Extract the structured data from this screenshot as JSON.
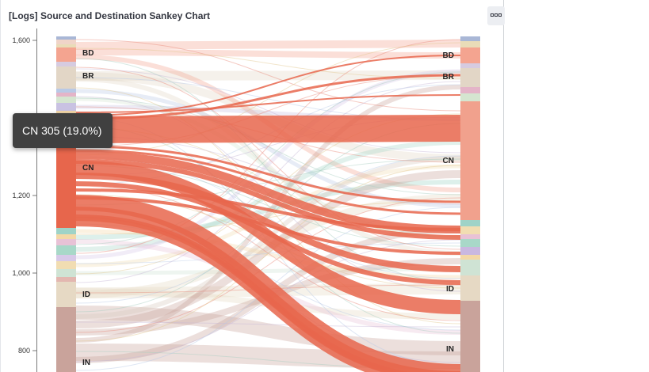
{
  "panel": {
    "title": "[Logs] Source and Destination Sankey Chart",
    "menu_icon": "ellipsis-icon"
  },
  "tooltip": {
    "text": "CN 305 (19.0%)"
  },
  "colors": {
    "cn": "#e7664c",
    "cn_light": "#f1a18d",
    "neutral": "#d8c9bc",
    "in": "#c9a39b"
  },
  "chart_data": {
    "type": "sankey",
    "title": "[Logs] Source and Destination Sankey Chart",
    "y_ticks": [
      "1,600",
      "1,200",
      "1,000",
      "800"
    ],
    "left_nodes": [
      "BD",
      "BR",
      "CN",
      "ID",
      "IN"
    ],
    "right_nodes": [
      "BD",
      "BR",
      "CN",
      "ID",
      "IN"
    ],
    "highlight": {
      "node": "CN",
      "count": 305,
      "percent": "19.0%"
    }
  }
}
